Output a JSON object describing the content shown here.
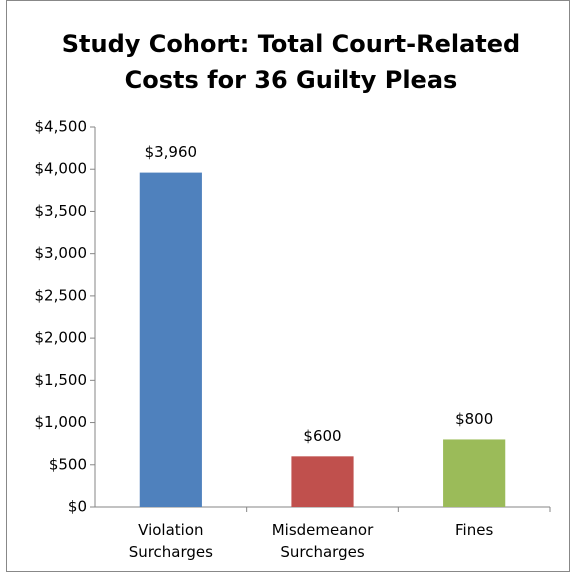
{
  "chart_data": {
    "type": "bar",
    "title": "Study Cohort: Total Court-Related Costs for 36 Guilty Pleas",
    "categories": [
      "Violation Surcharges",
      "Misdemeanor Surcharges",
      "Fines"
    ],
    "values": [
      3960,
      600,
      800
    ],
    "value_labels": [
      "$3,960",
      "$600",
      "$800"
    ],
    "colors": [
      "#4f81bd",
      "#c0504d",
      "#9bbb59"
    ],
    "ylim": [
      0,
      4500
    ],
    "yticks": [
      {
        "value": 0,
        "label": "$0"
      },
      {
        "value": 500,
        "label": "$500"
      },
      {
        "value": 1000,
        "label": "$1,000"
      },
      {
        "value": 1500,
        "label": "$1,500"
      },
      {
        "value": 2000,
        "label": "$2,000"
      },
      {
        "value": 2500,
        "label": "$2,500"
      },
      {
        "value": 3000,
        "label": "$3,000"
      },
      {
        "value": 3500,
        "label": "$3,500"
      },
      {
        "value": 4000,
        "label": "$4,000"
      },
      {
        "value": 4500,
        "label": "$4,500"
      }
    ],
    "grid": false
  }
}
